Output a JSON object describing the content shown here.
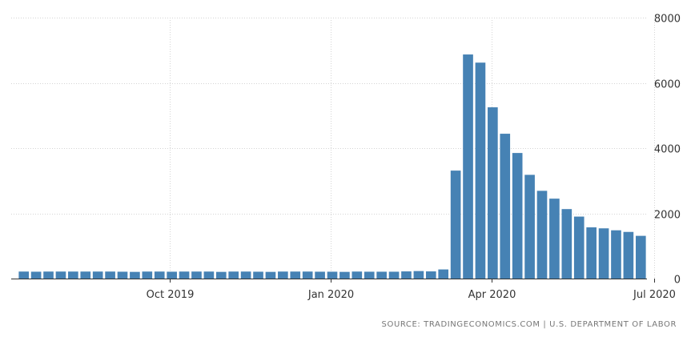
{
  "chart_data": {
    "type": "bar",
    "title": "",
    "xlabel": "",
    "ylabel": "",
    "ylim": [
      0,
      8000
    ],
    "y_ticks": [
      0,
      2000,
      4000,
      6000,
      8000
    ],
    "y_axis_side": "right",
    "grid": true,
    "bar_color": "#4682b4",
    "x_tick_labels": [
      {
        "label": "Oct 2019",
        "index": 11.8
      },
      {
        "label": "Jan 2020",
        "index": 24.9
      },
      {
        "label": "Apr 2020",
        "index": 37.9
      },
      {
        "label": "Jul 2020",
        "index": 51.1
      }
    ],
    "values": [
      215,
      210,
      215,
      215,
      215,
      215,
      215,
      215,
      210,
      205,
      215,
      215,
      210,
      215,
      215,
      215,
      205,
      215,
      215,
      210,
      205,
      215,
      215,
      215,
      210,
      210,
      205,
      215,
      210,
      210,
      210,
      220,
      230,
      220,
      280,
      3310,
      6870,
      6620,
      5250,
      4440,
      3850,
      3180,
      2690,
      2450,
      2130,
      1900,
      1570,
      1540,
      1480,
      1430,
      1310
    ]
  },
  "source": "SOURCE: TRADINGECONOMICS.COM | U.S. DEPARTMENT OF LABOR"
}
